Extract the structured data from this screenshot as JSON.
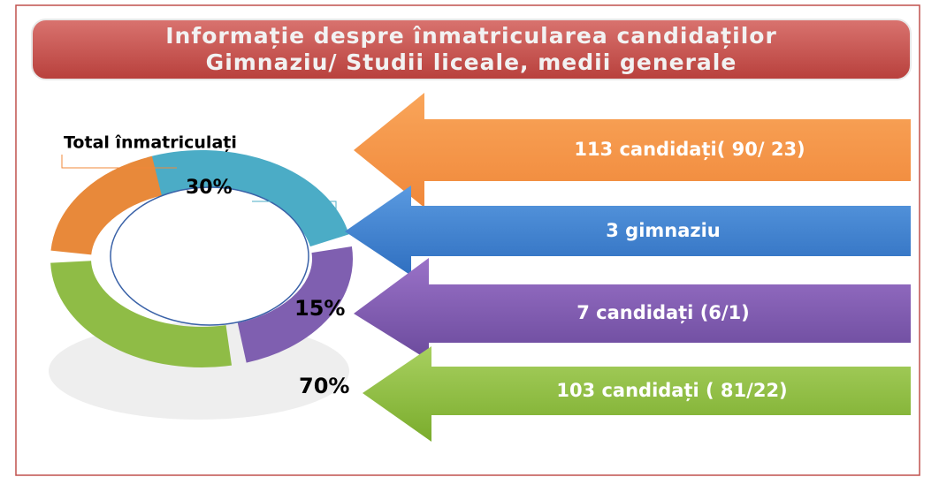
{
  "header": {
    "title": [
      "Informație despre înmatricularea candidaților",
      "Gimnaziu/ Studii liceale, medii generale"
    ]
  },
  "ring": {
    "title": "Total înmatriculați",
    "labels": [
      "30%",
      "15%",
      "70%"
    ]
  },
  "arrows": [
    {
      "label": "113 candidați( 90/ 23)"
    },
    {
      "label": "3  gimnaziu"
    },
    {
      "label": "7 candidați (6/1)"
    },
    {
      "label": "103 candidați ( 81/22)"
    }
  ]
}
